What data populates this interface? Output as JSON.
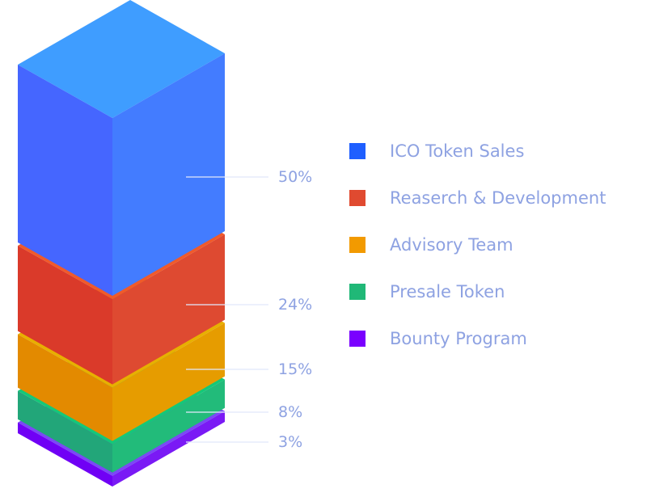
{
  "chart_data": {
    "type": "stacked-bar-3d",
    "title": "",
    "series": [
      {
        "name": "ICO Token Sales",
        "value": 50,
        "label": "50%",
        "color": "#1f5fff"
      },
      {
        "name": "Reaserch & Development",
        "value": 24,
        "label": "24%",
        "color": "#e04a30"
      },
      {
        "name": "Advisory Team",
        "value": 15,
        "label": "15%",
        "color": "#f29a00"
      },
      {
        "name": "Presale Token",
        "value": 8,
        "label": "8%",
        "color": "#20b877"
      },
      {
        "name": "Bounty Program",
        "value": 3,
        "label": "3%",
        "color": "#7a00ff"
      }
    ],
    "legend_placement": "right",
    "label_color": "#8ea2e2"
  }
}
